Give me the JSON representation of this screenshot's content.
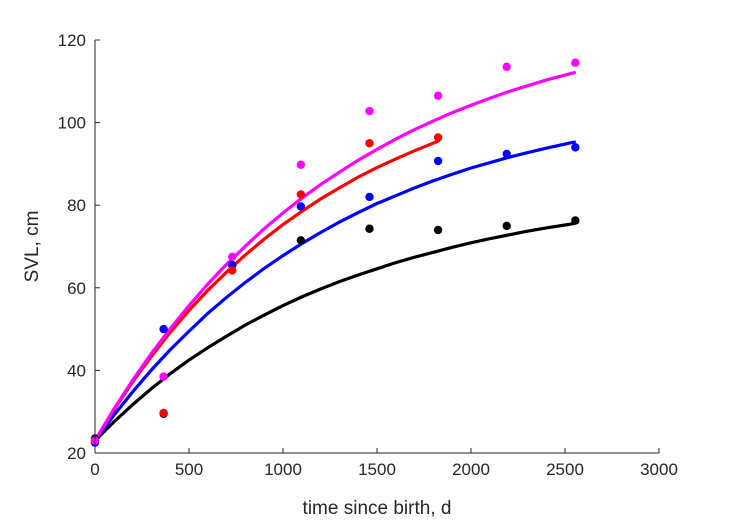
{
  "chart_data": {
    "type": "scatter",
    "xlabel": "time since birth, d",
    "ylabel": "SVL, cm",
    "xlim": [
      0,
      3000
    ],
    "ylim": [
      20,
      120
    ],
    "xticks": [
      0,
      500,
      1000,
      1500,
      2000,
      2500,
      3000
    ],
    "yticks": [
      20,
      40,
      60,
      80,
      100,
      120
    ],
    "grid": false,
    "series": [
      {
        "color": "#000000",
        "points": [
          [
            0,
            23.5
          ],
          [
            365,
            29.5
          ],
          [
            730,
            65.5
          ],
          [
            1095,
            71.5
          ],
          [
            1460,
            74.3
          ],
          [
            1825,
            74.0
          ],
          [
            2190,
            75.0
          ],
          [
            2555,
            76.3
          ]
        ],
        "fit": [
          [
            0,
            23
          ],
          [
            100,
            27.5
          ],
          [
            200,
            31.7
          ],
          [
            300,
            35.6
          ],
          [
            400,
            39.2
          ],
          [
            500,
            42.5
          ],
          [
            600,
            45.5
          ],
          [
            700,
            48.3
          ],
          [
            800,
            51.0
          ],
          [
            900,
            53.4
          ],
          [
            1000,
            55.7
          ],
          [
            1100,
            57.8
          ],
          [
            1200,
            59.7
          ],
          [
            1300,
            61.5
          ],
          [
            1400,
            63.1
          ],
          [
            1500,
            64.6
          ],
          [
            1600,
            66.1
          ],
          [
            1700,
            67.4
          ],
          [
            1800,
            68.6
          ],
          [
            1900,
            69.8
          ],
          [
            2000,
            70.9
          ],
          [
            2100,
            71.9
          ],
          [
            2200,
            72.8
          ],
          [
            2300,
            73.7
          ],
          [
            2400,
            74.5
          ],
          [
            2500,
            75.2
          ],
          [
            2550,
            75.6
          ]
        ]
      },
      {
        "color": "#0000ff",
        "points": [
          [
            0,
            22.5
          ],
          [
            365,
            50.0
          ],
          [
            730,
            65.5
          ],
          [
            1095,
            79.7
          ],
          [
            1460,
            82.0
          ],
          [
            1825,
            90.7
          ],
          [
            2190,
            92.4
          ],
          [
            2555,
            94.0
          ]
        ],
        "fit": [
          [
            0,
            23
          ],
          [
            100,
            29.1
          ],
          [
            200,
            34.8
          ],
          [
            300,
            40.1
          ],
          [
            400,
            45.0
          ],
          [
            500,
            49.5
          ],
          [
            600,
            53.8
          ],
          [
            700,
            57.7
          ],
          [
            800,
            61.3
          ],
          [
            900,
            64.7
          ],
          [
            1000,
            67.8
          ],
          [
            1100,
            70.7
          ],
          [
            1200,
            73.4
          ],
          [
            1300,
            75.9
          ],
          [
            1400,
            78.2
          ],
          [
            1500,
            80.4
          ],
          [
            1600,
            82.3
          ],
          [
            1700,
            84.2
          ],
          [
            1800,
            85.9
          ],
          [
            1900,
            87.5
          ],
          [
            2000,
            89.0
          ],
          [
            2100,
            90.3
          ],
          [
            2200,
            91.6
          ],
          [
            2300,
            92.7
          ],
          [
            2400,
            93.8
          ],
          [
            2500,
            94.8
          ],
          [
            2550,
            95.3
          ]
        ]
      },
      {
        "color": "#ff0000",
        "points": [
          [
            0,
            23.0
          ],
          [
            365,
            29.7
          ],
          [
            730,
            64.2
          ],
          [
            1095,
            82.6
          ],
          [
            1460,
            95.0
          ],
          [
            1825,
            96.4
          ]
        ],
        "fit": [
          [
            0,
            23
          ],
          [
            100,
            30.4
          ],
          [
            200,
            37.2
          ],
          [
            300,
            43.4
          ],
          [
            400,
            49.2
          ],
          [
            500,
            54.5
          ],
          [
            600,
            59.4
          ],
          [
            700,
            63.8
          ],
          [
            800,
            68.0
          ],
          [
            900,
            71.8
          ],
          [
            1000,
            75.3
          ],
          [
            1100,
            78.5
          ],
          [
            1200,
            81.5
          ],
          [
            1300,
            84.2
          ],
          [
            1400,
            86.8
          ],
          [
            1500,
            89.1
          ],
          [
            1600,
            91.2
          ],
          [
            1700,
            93.2
          ],
          [
            1825,
            95.5
          ]
        ]
      },
      {
        "color": "#ff00ff",
        "points": [
          [
            0,
            23.0
          ],
          [
            365,
            38.5
          ],
          [
            730,
            67.5
          ],
          [
            1095,
            89.8
          ],
          [
            1460,
            102.8
          ],
          [
            1825,
            106.5
          ],
          [
            2190,
            113.5
          ],
          [
            2555,
            114.5
          ]
        ],
        "fit": [
          [
            0,
            23
          ],
          [
            100,
            30.6
          ],
          [
            200,
            37.6
          ],
          [
            300,
            44.1
          ],
          [
            400,
            50.1
          ],
          [
            500,
            55.7
          ],
          [
            600,
            60.9
          ],
          [
            700,
            65.7
          ],
          [
            800,
            70.1
          ],
          [
            900,
            74.3
          ],
          [
            1000,
            78.1
          ],
          [
            1100,
            81.7
          ],
          [
            1200,
            85.0
          ],
          [
            1300,
            88.0
          ],
          [
            1400,
            90.9
          ],
          [
            1500,
            93.5
          ],
          [
            1600,
            96.0
          ],
          [
            1700,
            98.3
          ],
          [
            1800,
            100.4
          ],
          [
            1900,
            102.4
          ],
          [
            2000,
            104.2
          ],
          [
            2100,
            105.9
          ],
          [
            2200,
            107.5
          ],
          [
            2300,
            108.9
          ],
          [
            2400,
            110.3
          ],
          [
            2500,
            111.5
          ],
          [
            2550,
            112.1
          ]
        ]
      }
    ]
  }
}
